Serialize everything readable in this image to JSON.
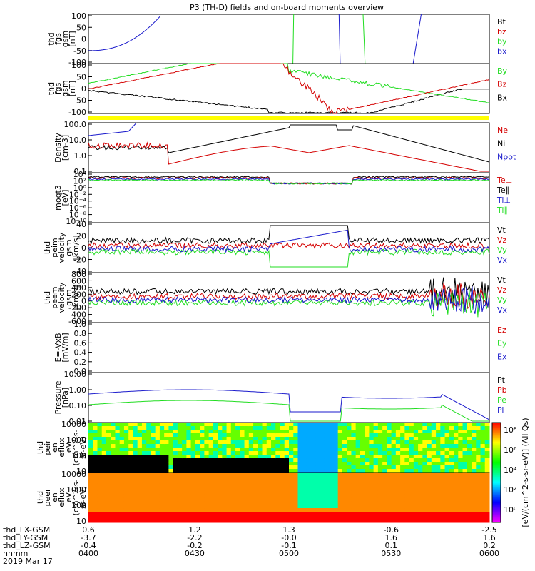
{
  "title": "P3 (TH-D) fields and on-board moments overview",
  "colors": {
    "black": "#000000",
    "red": "#d40000",
    "green": "#22dd22",
    "blue": "#1a1acc",
    "yellow": "#ffff00",
    "orange": "#ff8c00"
  },
  "chart_data": [
    {
      "type": "line",
      "id": "p1",
      "ylabel": [
        "thd",
        "fgs",
        "gsm",
        "[nT]"
      ],
      "ylim": [
        -100,
        100
      ],
      "ticks": [
        "100",
        "50",
        "0",
        "-50",
        "-100"
      ],
      "legend": [
        {
          "name": "Bt",
          "color": "black"
        },
        {
          "name": "bz",
          "color": "red"
        },
        {
          "name": "by",
          "color": "green"
        },
        {
          "name": "bx",
          "color": "blue"
        }
      ]
    },
    {
      "type": "line",
      "id": "p2",
      "ylabel": [
        "thd",
        "fgs",
        "gsm",
        "[nT]"
      ],
      "ylim": [
        -120,
        120
      ],
      "ticks": [
        "100",
        "50",
        "0",
        "-50",
        "-100"
      ],
      "legend": [
        {
          "name": "By",
          "color": "green"
        },
        {
          "name": "Bz",
          "color": "red"
        },
        {
          "name": "Bx",
          "color": "black"
        }
      ]
    },
    {
      "type": "line",
      "id": "p3",
      "ylabel": [
        "Density",
        "[cm-3]"
      ],
      "yscale": "log",
      "ticks": [
        "100.0",
        "10.0",
        "1.0",
        "0.1"
      ],
      "legend": [
        {
          "name": "Ne",
          "color": "red"
        },
        {
          "name": "Ni",
          "color": "black"
        },
        {
          "name": "Npot",
          "color": "blue"
        }
      ]
    },
    {
      "type": "line",
      "id": "p4",
      "ylabel": [
        "moqt3",
        "[eV]"
      ],
      "yscale": "log",
      "ticks": [
        "10⁴",
        "10²",
        "10⁰",
        "10⁻²",
        "10⁻⁴",
        "10⁻⁶",
        "10⁻⁸",
        "10⁻¹⁰"
      ],
      "legend": [
        {
          "name": "Te⊥",
          "color": "red"
        },
        {
          "name": "Te∥",
          "color": "black"
        },
        {
          "name": "Ti⊥",
          "color": "blue"
        },
        {
          "name": "Ti∥",
          "color": "green"
        }
      ]
    },
    {
      "type": "line",
      "id": "p5",
      "ylabel": [
        "thd",
        "peim",
        "velocity",
        "gsm",
        "[km/s]"
      ],
      "ylim": [
        -40,
        40
      ],
      "ticks": [
        "40",
        "20",
        "0",
        "-20",
        "-40"
      ],
      "legend": [
        {
          "name": "Vt",
          "color": "black"
        },
        {
          "name": "Vz",
          "color": "red"
        },
        {
          "name": "Vy",
          "color": "green"
        },
        {
          "name": "Vx",
          "color": "blue"
        }
      ]
    },
    {
      "type": "line",
      "id": "p6",
      "ylabel": [
        "thd",
        "peem",
        "velocity",
        "gsm",
        "[km/s]"
      ],
      "ylim": [
        -600,
        800
      ],
      "ticks": [
        "800",
        "600",
        "400",
        "200",
        "0",
        "-200",
        "-400",
        "-600"
      ],
      "legend": [
        {
          "name": "Vt",
          "color": "black"
        },
        {
          "name": "Vz",
          "color": "red"
        },
        {
          "name": "Vy",
          "color": "green"
        },
        {
          "name": "Vx",
          "color": "blue"
        }
      ]
    },
    {
      "type": "line",
      "id": "p7",
      "ylabel": [
        "E=-VxB",
        "[mV/m]"
      ],
      "ylim": [
        0,
        1
      ],
      "ticks": [
        "1.0",
        "0.8",
        "0.6",
        "0.4",
        "0.2",
        "0.0"
      ],
      "legend": [
        {
          "name": "Ez",
          "color": "red"
        },
        {
          "name": "Ey",
          "color": "green"
        },
        {
          "name": "Ex",
          "color": "blue"
        }
      ]
    },
    {
      "type": "line",
      "id": "p8",
      "ylabel": [
        "Pressure",
        "[nPa]"
      ],
      "yscale": "log",
      "ticks": [
        "10.00",
        "1.00",
        "0.10",
        "0.01"
      ],
      "legend": [
        {
          "name": "Pt",
          "color": "black"
        },
        {
          "name": "Pb",
          "color": "red"
        },
        {
          "name": "Pe",
          "color": "green"
        },
        {
          "name": "Pi",
          "color": "blue"
        }
      ]
    },
    {
      "type": "heatmap",
      "id": "p9",
      "ylabel": [
        "thd",
        "peir",
        "en",
        "eflux",
        "eV",
        "(cm^2-s-",
        "sr-eV)"
      ],
      "yscale": "log",
      "ticks": [
        "10000",
        "1000",
        "100",
        "10"
      ]
    },
    {
      "type": "heatmap",
      "id": "p10",
      "ylabel": [
        "thd",
        "peer",
        "en",
        "eflux",
        "eV",
        "(cm^2-s-",
        "sr-eV)"
      ],
      "yscale": "log",
      "ticks": [
        "10000",
        "1000",
        "100",
        "10"
      ]
    }
  ],
  "colorbar": {
    "label": "[eV/(cm^2-s-sr-eV)] (All Qs)",
    "ticks": [
      "10⁸",
      "10⁶",
      "10⁴",
      "10²",
      "10⁰"
    ]
  },
  "xaxis": {
    "rows": [
      {
        "name": "thd_LX-GSM",
        "values": [
          "0.6",
          "1.2",
          "1.3",
          "-0.6",
          "-2.5"
        ]
      },
      {
        "name": "thd_LY-GSM",
        "values": [
          "-3.7",
          "-2.2",
          "-0.0",
          "1.6",
          "1.6"
        ]
      },
      {
        "name": "thd_LZ-GSM",
        "values": [
          "-0.4",
          "-0.2",
          "-0.1",
          "0.1",
          "0.2"
        ]
      },
      {
        "name": "hhmm",
        "values": [
          "0400",
          "0430",
          "0500",
          "0530",
          "0600"
        ]
      }
    ],
    "date": "2019 Mar 17"
  }
}
